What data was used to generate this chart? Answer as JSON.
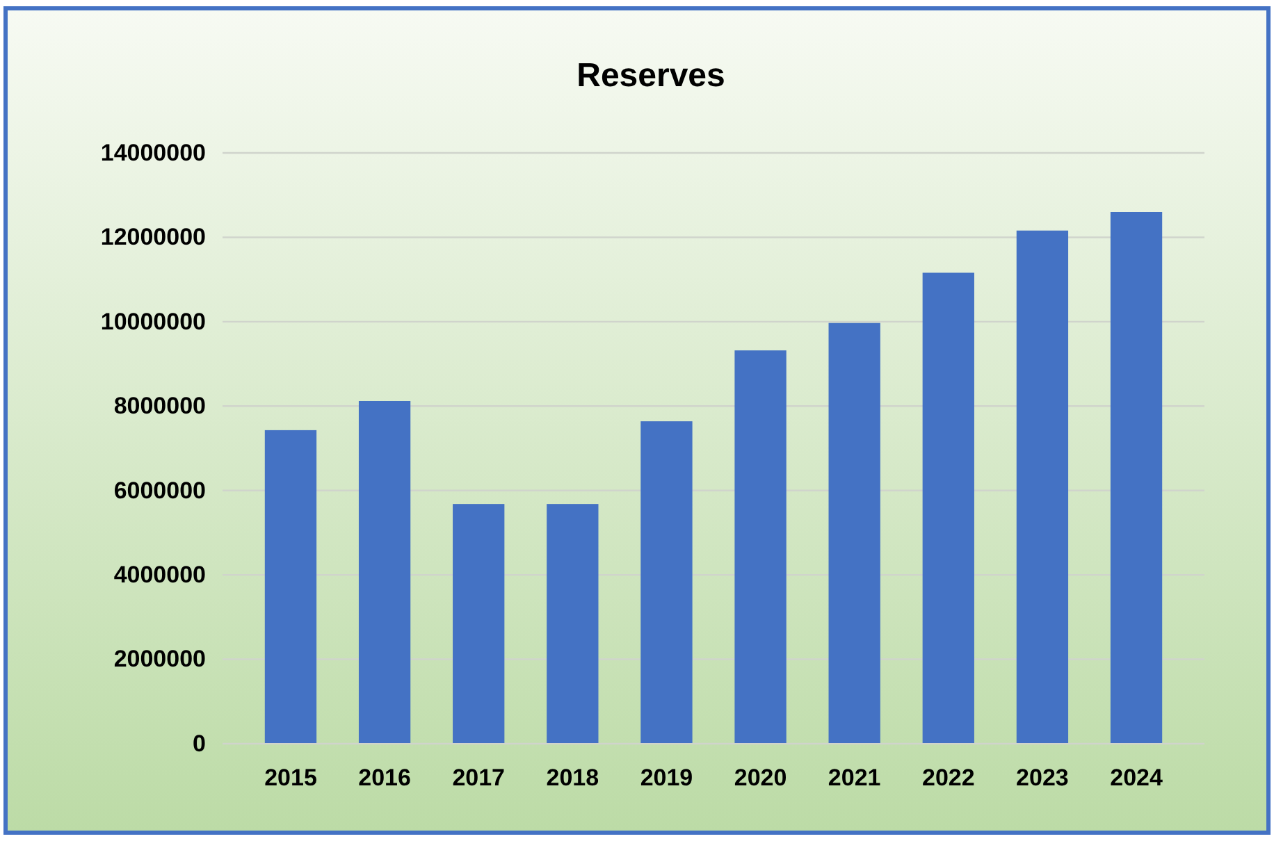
{
  "chart_data": {
    "type": "bar",
    "title": "Reserves",
    "categories": [
      "2015",
      "2016",
      "2017",
      "2018",
      "2019",
      "2020",
      "2021",
      "2022",
      "2023",
      "2024"
    ],
    "values": [
      7430000,
      8120000,
      5680000,
      5680000,
      7640000,
      9320000,
      9970000,
      11160000,
      12160000,
      12600000
    ],
    "color": "#4472c4",
    "ylim": [
      0,
      14000000
    ],
    "yticks": [
      0,
      2000000,
      4000000,
      6000000,
      8000000,
      10000000,
      12000000,
      14000000
    ],
    "grid": "y"
  }
}
